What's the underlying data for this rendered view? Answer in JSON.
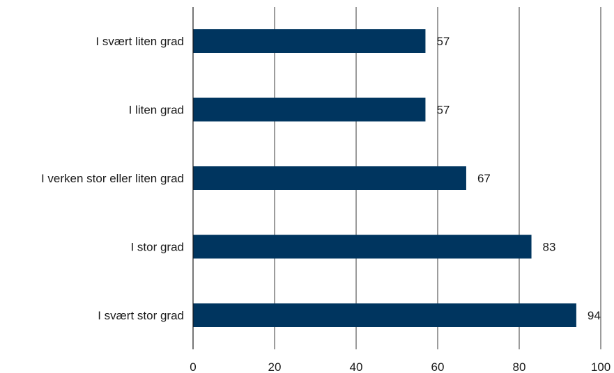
{
  "chart_data": {
    "type": "bar",
    "orientation": "horizontal",
    "categories": [
      "I svært liten grad",
      "I liten grad",
      "I verken stor eller liten grad",
      "I stor grad",
      "I svært stor grad"
    ],
    "values": [
      57,
      57,
      67,
      83,
      94
    ],
    "title": "",
    "xlabel": "",
    "ylabel": "",
    "xlim": [
      0,
      100
    ],
    "xticks": [
      0,
      20,
      40,
      60,
      80,
      100
    ],
    "grid": true,
    "legend": "none",
    "bar_color": "#00355f"
  }
}
